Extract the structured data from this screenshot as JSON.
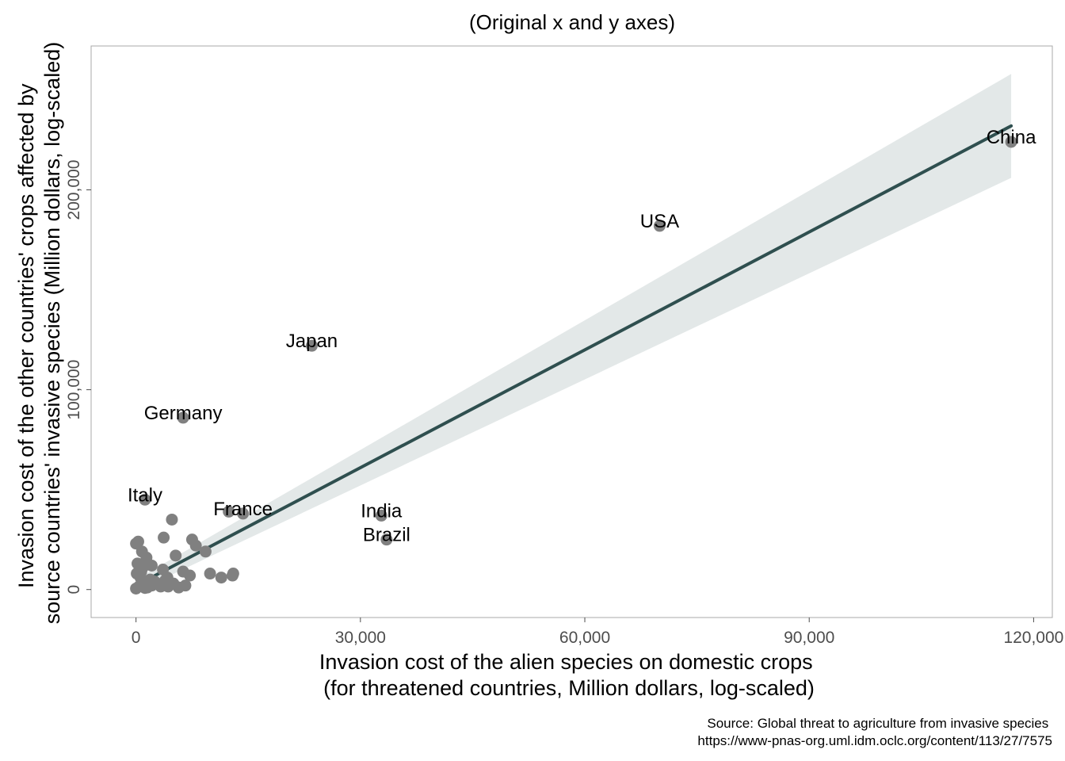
{
  "chart_data": {
    "type": "scatter",
    "title": "(Original x and y axes)",
    "xlabel": [
      "Invasion cost of the alien species on domestic crops",
      "(for threatened countries, Million dollars, log-scaled)"
    ],
    "ylabel": [
      "Invasion cost of the other countries' crops affected by",
      "source countries' invasive species (Million dollars, log-scaled)"
    ],
    "xlim": [
      -6000,
      122500
    ],
    "ylim": [
      -14000,
      272000
    ],
    "xticks": [
      0,
      30000,
      60000,
      90000,
      120000
    ],
    "xtick_labels": [
      "0",
      "30,000",
      "60,000",
      "90,000",
      "120,000"
    ],
    "yticks": [
      0,
      100000,
      200000
    ],
    "ytick_labels": [
      "0",
      "100,000",
      "200,000"
    ],
    "grid": false,
    "colors": {
      "points": "#808080",
      "fit_line": "#2f4f4f",
      "confidence_band": "#e3e8e8",
      "frame": "#a8a8a8"
    },
    "labeled_points": [
      {
        "name": "China",
        "x": 117000,
        "y": 224000
      },
      {
        "name": "USA",
        "x": 70000,
        "y": 182000
      },
      {
        "name": "Japan",
        "x": 23500,
        "y": 122000
      },
      {
        "name": "Germany",
        "x": 6300,
        "y": 86000
      },
      {
        "name": "Italy",
        "x": 1200,
        "y": 45000
      },
      {
        "name": "France",
        "x": 14300,
        "y": 38000
      },
      {
        "name": "India",
        "x": 32800,
        "y": 37000
      },
      {
        "name": "Brazil",
        "x": 33500,
        "y": 25000
      }
    ],
    "unlabeled_points": [
      {
        "x": 12400,
        "y": 39000
      },
      {
        "x": 4800,
        "y": 35000
      },
      {
        "x": 3700,
        "y": 26000
      },
      {
        "x": 7500,
        "y": 25000
      },
      {
        "x": 0,
        "y": 23000
      },
      {
        "x": 300,
        "y": 24000
      },
      {
        "x": 8000,
        "y": 22000
      },
      {
        "x": 9300,
        "y": 19000
      },
      {
        "x": 800,
        "y": 19000
      },
      {
        "x": 5300,
        "y": 17000
      },
      {
        "x": 1400,
        "y": 16000
      },
      {
        "x": 200,
        "y": 13000
      },
      {
        "x": 2100,
        "y": 12000
      },
      {
        "x": 900,
        "y": 11000
      },
      {
        "x": 3600,
        "y": 10000
      },
      {
        "x": 6300,
        "y": 9000
      },
      {
        "x": 9900,
        "y": 8000
      },
      {
        "x": 11400,
        "y": 6000
      },
      {
        "x": 12900,
        "y": 7000
      },
      {
        "x": 13000,
        "y": 8000
      },
      {
        "x": 7200,
        "y": 7000
      },
      {
        "x": 4200,
        "y": 6000
      },
      {
        "x": 1900,
        "y": 5000
      },
      {
        "x": 600,
        "y": 6000
      },
      {
        "x": 2800,
        "y": 3000
      },
      {
        "x": 5000,
        "y": 3000
      },
      {
        "x": 6600,
        "y": 2000
      },
      {
        "x": 3300,
        "y": 1500
      },
      {
        "x": 1500,
        "y": 1000
      },
      {
        "x": 400,
        "y": 1500
      },
      {
        "x": 0,
        "y": 500
      },
      {
        "x": 900,
        "y": 3000
      },
      {
        "x": 2100,
        "y": 2000
      },
      {
        "x": 4300,
        "y": 1500
      },
      {
        "x": 5700,
        "y": 1000
      },
      {
        "x": 1200,
        "y": 800
      },
      {
        "x": 2500,
        "y": 4000
      },
      {
        "x": 3900,
        "y": 4500
      },
      {
        "x": 100,
        "y": 8000
      },
      {
        "x": 700,
        "y": 9000
      }
    ],
    "fit_line": {
      "x": [
        0,
        117000
      ],
      "y": [
        2000,
        232000
      ]
    },
    "confidence_band": {
      "x": [
        0,
        117000
      ],
      "lower": [
        -1000,
        206000
      ],
      "upper": [
        5000,
        258000
      ]
    }
  },
  "source_note": [
    "Source: Global threat to agriculture from invasive species",
    "https://www-pnas-org.uml.idm.oclc.org/content/113/27/7575"
  ]
}
